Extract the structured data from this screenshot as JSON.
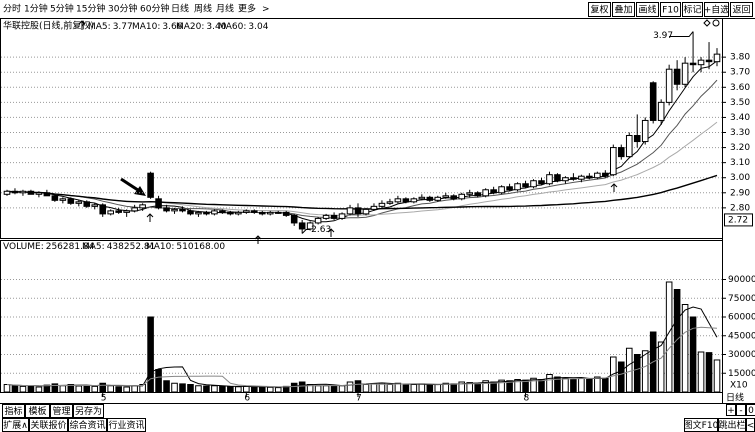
{
  "toolbar": {
    "periods": [
      "分时",
      "1分钟",
      "5分钟",
      "15分钟",
      "30分钟",
      "60分钟",
      "日线",
      "周线",
      "月线",
      "更多",
      ">"
    ],
    "buttons": [
      "复权",
      "叠加",
      "画线",
      "F10",
      "标记",
      "+自选",
      "返回"
    ]
  },
  "chart_data": [
    {
      "type": "candlestick",
      "title": "华联控股(日线,前复权)",
      "open": [
        2.89,
        2.91,
        2.9,
        2.91,
        2.89,
        2.9,
        2.88,
        2.85,
        2.86,
        2.83,
        2.84,
        2.81,
        2.82,
        2.76,
        2.78,
        2.77,
        2.78,
        2.8,
        3.03,
        2.86,
        2.8,
        2.78,
        2.79,
        2.78,
        2.76,
        2.77,
        2.76,
        2.78,
        2.77,
        2.76,
        2.77,
        2.78,
        2.77,
        2.76,
        2.77,
        2.77,
        2.75,
        2.7,
        2.66,
        2.7,
        2.73,
        2.75,
        2.73,
        2.76,
        2.8,
        2.76,
        2.79,
        2.81,
        2.83,
        2.84,
        2.86,
        2.84,
        2.86,
        2.87,
        2.85,
        2.87,
        2.88,
        2.86,
        2.89,
        2.9,
        2.88,
        2.92,
        2.9,
        2.94,
        2.92,
        2.96,
        2.94,
        2.98,
        2.96,
        3.02,
        2.98,
        3.0,
        2.99,
        3.01,
        3.0,
        3.03,
        3.02,
        3.2,
        3.14,
        3.28,
        3.24,
        3.63,
        3.38,
        3.5,
        3.72,
        3.62,
        3.76,
        3.75,
        3.78,
        3.77
      ],
      "high": [
        2.92,
        2.93,
        2.92,
        2.92,
        2.91,
        2.92,
        2.89,
        2.87,
        2.87,
        2.85,
        2.85,
        2.83,
        2.83,
        2.79,
        2.8,
        2.79,
        2.82,
        2.83,
        3.04,
        2.88,
        2.82,
        2.8,
        2.81,
        2.79,
        2.78,
        2.78,
        2.79,
        2.79,
        2.78,
        2.78,
        2.79,
        2.79,
        2.78,
        2.78,
        2.78,
        2.78,
        2.76,
        2.72,
        2.71,
        2.74,
        2.76,
        2.77,
        2.77,
        2.82,
        2.83,
        2.8,
        2.83,
        2.85,
        2.86,
        2.88,
        2.87,
        2.87,
        2.89,
        2.88,
        2.88,
        2.9,
        2.89,
        2.9,
        2.92,
        2.91,
        2.93,
        2.94,
        2.95,
        2.96,
        2.97,
        2.98,
        2.99,
        3.0,
        3.04,
        3.03,
        3.01,
        3.03,
        3.02,
        3.03,
        3.04,
        3.05,
        3.22,
        3.22,
        3.3,
        3.42,
        3.4,
        3.64,
        3.52,
        3.75,
        3.78,
        3.8,
        3.97,
        3.8,
        3.9,
        3.86
      ],
      "low": [
        2.88,
        2.89,
        2.88,
        2.89,
        2.87,
        2.88,
        2.84,
        2.83,
        2.82,
        2.81,
        2.8,
        2.79,
        2.74,
        2.75,
        2.76,
        2.74,
        2.77,
        2.78,
        2.86,
        2.79,
        2.77,
        2.76,
        2.77,
        2.75,
        2.74,
        2.75,
        2.75,
        2.76,
        2.75,
        2.75,
        2.76,
        2.76,
        2.75,
        2.75,
        2.76,
        2.74,
        2.68,
        2.63,
        2.65,
        2.69,
        2.72,
        2.72,
        2.72,
        2.75,
        2.74,
        2.75,
        2.78,
        2.8,
        2.82,
        2.83,
        2.83,
        2.83,
        2.85,
        2.84,
        2.84,
        2.86,
        2.85,
        2.85,
        2.87,
        2.87,
        2.87,
        2.89,
        2.89,
        2.91,
        2.91,
        2.93,
        2.93,
        2.95,
        2.95,
        2.97,
        2.96,
        2.98,
        2.97,
        2.99,
        2.99,
        3.0,
        3.01,
        3.12,
        3.13,
        3.2,
        3.22,
        3.36,
        3.35,
        3.48,
        3.58,
        3.6,
        3.7,
        3.7,
        3.72,
        3.74
      ],
      "close": [
        2.91,
        2.9,
        2.91,
        2.89,
        2.9,
        2.88,
        2.85,
        2.86,
        2.83,
        2.84,
        2.81,
        2.82,
        2.76,
        2.78,
        2.77,
        2.78,
        2.8,
        2.82,
        2.87,
        2.8,
        2.78,
        2.79,
        2.78,
        2.76,
        2.77,
        2.76,
        2.78,
        2.77,
        2.76,
        2.77,
        2.78,
        2.77,
        2.76,
        2.77,
        2.77,
        2.75,
        2.7,
        2.66,
        2.7,
        2.73,
        2.75,
        2.73,
        2.76,
        2.8,
        2.76,
        2.79,
        2.81,
        2.83,
        2.84,
        2.86,
        2.84,
        2.86,
        2.87,
        2.85,
        2.87,
        2.88,
        2.86,
        2.89,
        2.9,
        2.88,
        2.92,
        2.9,
        2.94,
        2.92,
        2.96,
        2.94,
        2.98,
        2.96,
        3.02,
        2.98,
        3.0,
        2.99,
        3.01,
        3.0,
        3.03,
        3.01,
        3.2,
        3.14,
        3.28,
        3.24,
        3.38,
        3.38,
        3.5,
        3.72,
        3.62,
        3.76,
        3.75,
        3.78,
        3.77,
        3.82
      ],
      "color": "#000000",
      "ylim": [
        2.6,
        4.02
      ],
      "yticks": [
        {
          "value": 2.8,
          "label": "2.80"
        },
        {
          "value": 2.9,
          "label": "2.90"
        },
        {
          "value": 3.0,
          "label": "3.00"
        },
        {
          "value": 3.1,
          "label": "3.10"
        },
        {
          "value": 3.2,
          "label": "3.20"
        },
        {
          "value": 3.3,
          "label": "3.30"
        },
        {
          "value": 3.4,
          "label": "3.40"
        },
        {
          "value": 3.5,
          "label": "3.50"
        },
        {
          "value": 3.6,
          "label": "3.60"
        },
        {
          "value": 3.7,
          "label": "3.70"
        },
        {
          "value": 3.8,
          "label": "3.80"
        }
      ],
      "price_marker": 2.72,
      "grid": true,
      "moving_averages": {
        "names": [
          "MA5:",
          "MA10:",
          "MA20:",
          "MA60:"
        ],
        "values": [
          3.77,
          3.66,
          3.4,
          3.04
        ],
        "value_labels": [
          "3.77",
          "3.66",
          "3.40",
          "3.04"
        ],
        "colors": [
          "#000000",
          "#555555",
          "#aaaaaa",
          "#000000"
        ]
      }
    },
    {
      "type": "bar",
      "categories": [
        null,
        null,
        null,
        null,
        null,
        null,
        null,
        null,
        null,
        null,
        null,
        null,
        "5",
        null,
        null,
        null,
        null,
        null,
        null,
        null,
        null,
        null,
        null,
        null,
        null,
        null,
        null,
        null,
        null,
        null,
        "6",
        null,
        null,
        null,
        null,
        null,
        null,
        null,
        null,
        null,
        null,
        null,
        null,
        null,
        "7",
        null,
        null,
        null,
        null,
        null,
        null,
        null,
        null,
        null,
        null,
        null,
        null,
        null,
        null,
        null,
        null,
        null,
        null,
        null,
        null,
        "8",
        null,
        null,
        null,
        null,
        null,
        null,
        null,
        null,
        null,
        null,
        null,
        null,
        null,
        null,
        null,
        null,
        null,
        null,
        null,
        null,
        null,
        null,
        null,
        null
      ],
      "values": [
        6000,
        5000,
        4500,
        5200,
        4000,
        5500,
        6500,
        5000,
        6000,
        4800,
        5200,
        4500,
        7000,
        5000,
        4200,
        4000,
        5000,
        6000,
        60000,
        18000,
        9000,
        7000,
        6500,
        6000,
        5000,
        4800,
        5000,
        4500,
        4000,
        4200,
        4500,
        4000,
        4300,
        3800,
        3500,
        4500,
        7000,
        8000,
        6000,
        5000,
        5000,
        4500,
        5000,
        8000,
        9000,
        6000,
        6500,
        7000,
        6000,
        7000,
        5500,
        6000,
        6500,
        5500,
        6000,
        7000,
        6500,
        8000,
        7500,
        7000,
        9000,
        8000,
        9500,
        9000,
        10000,
        9500,
        11000,
        10000,
        14000,
        12000,
        11000,
        10000,
        11000,
        10000,
        12000,
        11000,
        28000,
        24000,
        35000,
        30000,
        33000,
        48000,
        40000,
        88000,
        82000,
        70000,
        60000,
        32000,
        31500,
        25628
      ],
      "color": "#000000",
      "ylim": [
        0,
        112000
      ],
      "yticks": [
        15000,
        30000,
        45000,
        60000,
        75000,
        90000
      ],
      "unit": "X10",
      "grid": true,
      "legend": {
        "names": [
          "VOLUME:",
          "MA5:",
          "MA10:"
        ],
        "values": [
          256281.84,
          438252.81,
          510168
        ],
        "value_labels": [
          "256281.84",
          "438252.81",
          "510168.00"
        ],
        "colors": [
          "#000000",
          "#000000",
          "#888888"
        ]
      }
    }
  ],
  "footer": {
    "tabs": [
      "指标",
      "模板",
      "管理",
      "另存为"
    ],
    "tabs2": [
      "扩展∧",
      "关联报价",
      "综合资讯",
      "行业资讯"
    ],
    "period": "日线",
    "zoom": [
      "+",
      "-",
      "0"
    ],
    "buttons": [
      "图文F10",
      "跳出栏",
      "<"
    ]
  }
}
